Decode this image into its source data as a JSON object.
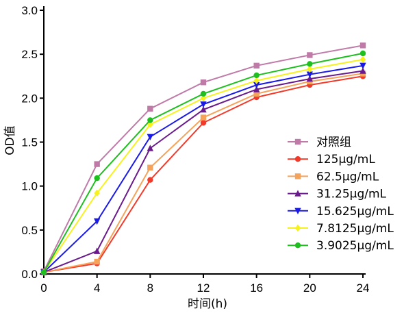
{
  "chart_data": {
    "type": "line",
    "title": "",
    "xlabel": "时间(h)",
    "ylabel": "OD值",
    "x": [
      0,
      4,
      8,
      12,
      16,
      20,
      24
    ],
    "xlim": [
      0,
      24
    ],
    "ylim": [
      0,
      3.0
    ],
    "xticks": [
      "0",
      "4",
      "8",
      "12",
      "16",
      "20",
      "24"
    ],
    "yticks": [
      "0.0",
      "0.5",
      "1.0",
      "1.5",
      "2.0",
      "2.5",
      "3.0"
    ],
    "grid": false,
    "legend_position": "bottom-right",
    "series": [
      {
        "name": "对照组",
        "color": "#c07aa8",
        "marker": "square",
        "values": [
          0.03,
          1.25,
          1.88,
          2.18,
          2.37,
          2.49,
          2.6
        ]
      },
      {
        "name": "125μg/mL",
        "color": "#f23a2a",
        "marker": "circle",
        "values": [
          0.02,
          0.12,
          1.07,
          1.72,
          2.01,
          2.15,
          2.25
        ]
      },
      {
        "name": "62.5μg/mL",
        "color": "#f5a25a",
        "marker": "square",
        "values": [
          0.02,
          0.14,
          1.21,
          1.78,
          2.05,
          2.19,
          2.28
        ]
      },
      {
        "name": "31.25μg/mL",
        "color": "#6a1a8c",
        "marker": "triangle",
        "values": [
          0.02,
          0.26,
          1.43,
          1.87,
          2.1,
          2.22,
          2.31
        ]
      },
      {
        "name": "15.625μg/mL",
        "color": "#1a1ae6",
        "marker": "triangle-down",
        "values": [
          0.02,
          0.6,
          1.56,
          1.93,
          2.15,
          2.27,
          2.37
        ]
      },
      {
        "name": "7.8125μg/mL",
        "color": "#f7f21c",
        "marker": "diamond",
        "values": [
          0.02,
          0.92,
          1.7,
          2.0,
          2.2,
          2.33,
          2.44
        ]
      },
      {
        "name": "3.9025μg/mL",
        "color": "#1fbf1f",
        "marker": "circle",
        "values": [
          0.02,
          1.09,
          1.75,
          2.05,
          2.26,
          2.39,
          2.51
        ]
      }
    ]
  }
}
